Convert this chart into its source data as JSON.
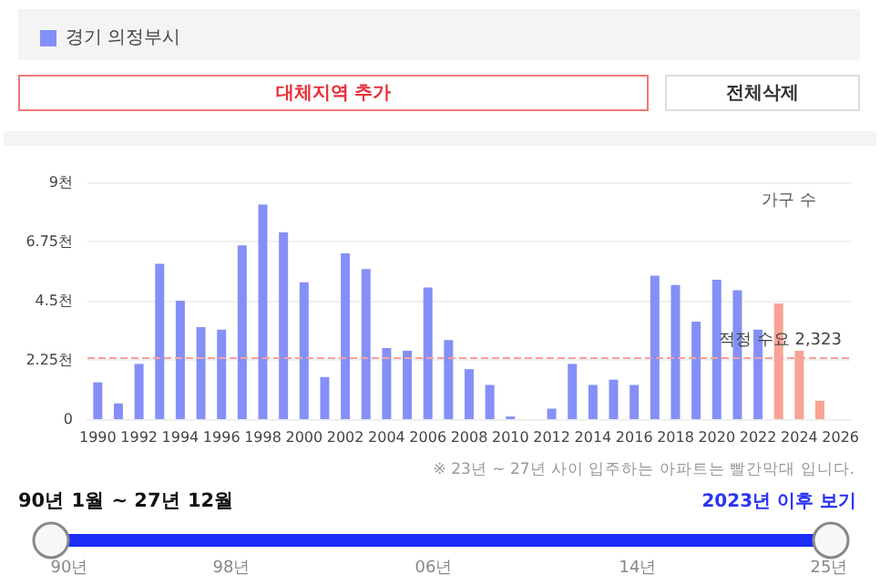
{
  "chart_data": {
    "type": "bar",
    "ylabel": "가구 수",
    "categories": [
      "1990",
      null,
      "1992",
      null,
      "1994",
      null,
      "1996",
      null,
      "1998",
      null,
      "2000",
      null,
      "2002",
      null,
      "2004",
      null,
      "2006",
      null,
      "2008",
      null,
      "2010",
      null,
      "2012",
      null,
      "2014",
      null,
      "2016",
      null,
      "2018",
      null,
      "2020",
      null,
      "2022",
      null,
      "2024",
      null,
      "2026"
    ],
    "series": [
      {
        "name": "경기 의정부시",
        "color": "#8490f7",
        "colors": [
          "#8490f7",
          "#8490f7",
          "#8490f7",
          "#8490f7",
          "#8490f7",
          "#8490f7",
          "#8490f7",
          "#8490f7",
          "#8490f7",
          "#8490f7",
          "#8490f7",
          "#8490f7",
          "#8490f7",
          "#8490f7",
          "#8490f7",
          "#8490f7",
          "#8490f7",
          "#8490f7",
          "#8490f7",
          "#8490f7",
          "#8490f7",
          "#8490f7",
          "#8490f7",
          "#8490f7",
          "#8490f7",
          "#8490f7",
          "#8490f7",
          "#8490f7",
          "#8490f7",
          "#8490f7",
          "#8490f7",
          "#8490f7",
          "#8490f7",
          "#f9a394",
          "#f9a394",
          "#f9a394",
          "#f9a394"
        ],
        "values": [
          1.4,
          0.6,
          2.1,
          5.9,
          4.5,
          3.5,
          3.4,
          6.6,
          8.15,
          7.1,
          5.2,
          1.6,
          6.3,
          5.7,
          2.7,
          2.6,
          5.0,
          3.0,
          1.9,
          1.3,
          0.1,
          null,
          0.4,
          2.1,
          1.3,
          1.5,
          1.3,
          5.45,
          5.1,
          3.7,
          5.3,
          4.9,
          3.4,
          4.4,
          2.6,
          0.7,
          null
        ]
      }
    ],
    "ylim": [
      0,
      9
    ],
    "yticks": [
      0,
      {
        "value": 2.25,
        "label": "2.25천"
      },
      {
        "value": 4.5,
        "label": "4.5천"
      },
      {
        "value": 6.75,
        "label": "6.75천"
      },
      {
        "value": 9,
        "label": "9천"
      }
    ],
    "grid": "y",
    "legend": "top left",
    "ref_lines": [
      {
        "axis": "y",
        "value": 2.323,
        "label": "적정 수요 2,323",
        "color": "#f7a0a0",
        "line_style": "dashed"
      }
    ],
    "annotations": [
      "대체지역 추가",
      "전체삭제",
      "※ 23년 ~ 27년 사이 입주하는 아파트는 빨간막대 입니다.",
      "90년 1월 ~ 27년 12월",
      "2023년 이후 보기",
      "90년",
      "98년",
      "06년",
      "14년",
      "25년"
    ]
  }
}
